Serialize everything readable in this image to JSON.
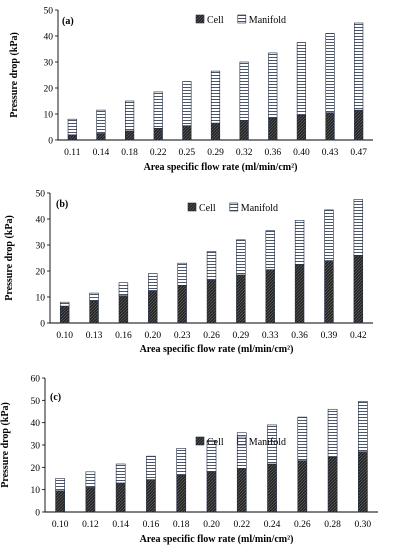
{
  "figure": {
    "panels": [
      "(a)",
      "(b)",
      "(c)"
    ]
  },
  "chart_data": [
    {
      "type": "bar",
      "stacked": true,
      "panel_label": "(a)",
      "categories": [
        "0.11",
        "0.14",
        "0.18",
        "0.22",
        "0.25",
        "0.29",
        "0.32",
        "0.36",
        "0.40",
        "0.43",
        "0.47"
      ],
      "series": [
        {
          "name": "Cell",
          "values": [
            2,
            2.5,
            3.5,
            4.5,
            5.5,
            6.5,
            7.5,
            8.5,
            9.5,
            10.5,
            11.5
          ]
        },
        {
          "name": "Manifold",
          "values": [
            6,
            9,
            11.5,
            14,
            17,
            20,
            22.5,
            25,
            28,
            30.5,
            33.5
          ]
        }
      ],
      "xlabel": "Area specific flow rate (ml/min/cm²)",
      "ylabel": "Pressure drop (kPa)",
      "ylim": [
        0,
        50
      ],
      "yticks": [
        0,
        10,
        20,
        30,
        40,
        50
      ],
      "legend_position": "top-center",
      "grid": false
    },
    {
      "type": "bar",
      "stacked": true,
      "panel_label": "(b)",
      "categories": [
        "0.10",
        "0.13",
        "0.16",
        "0.20",
        "0.23",
        "0.26",
        "0.29",
        "0.33",
        "0.36",
        "0.39",
        "0.42"
      ],
      "series": [
        {
          "name": "Cell",
          "values": [
            6.5,
            8.5,
            10.5,
            12.5,
            14.5,
            16.5,
            18.5,
            20.5,
            22.5,
            24,
            26
          ]
        },
        {
          "name": "Manifold",
          "values": [
            1.5,
            3,
            5,
            6.5,
            8.5,
            11,
            13.5,
            15,
            17,
            19.5,
            21.5
          ]
        }
      ],
      "xlabel": "Area specific flow rate (ml/min/cm²)",
      "ylabel": "Pressure drop (kPa)",
      "ylim": [
        0,
        50
      ],
      "yticks": [
        0,
        10,
        20,
        30,
        40,
        50
      ],
      "legend_position": "middle-right",
      "grid": false
    },
    {
      "type": "bar",
      "stacked": true,
      "panel_label": "(c)",
      "categories": [
        "0.10",
        "0.12",
        "0.14",
        "0.16",
        "0.18",
        "0.20",
        "0.22",
        "0.24",
        "0.26",
        "0.28",
        "0.30"
      ],
      "series": [
        {
          "name": "Cell",
          "values": [
            9.5,
            11,
            13,
            14.5,
            16.5,
            18,
            19.5,
            21.5,
            23,
            24.5,
            27
          ]
        },
        {
          "name": "Manifold",
          "values": [
            5.5,
            7,
            8.5,
            10.5,
            12,
            14,
            16,
            17.5,
            19.5,
            21.5,
            22.5
          ]
        }
      ],
      "xlabel": "Area specific flow rate (ml/min/cm²)",
      "ylabel": "Pressure drop (kPa)",
      "ylim": [
        0,
        60
      ],
      "yticks": [
        0,
        10,
        20,
        30,
        40,
        50,
        60
      ],
      "legend_position": "middle-right",
      "grid": false
    }
  ]
}
